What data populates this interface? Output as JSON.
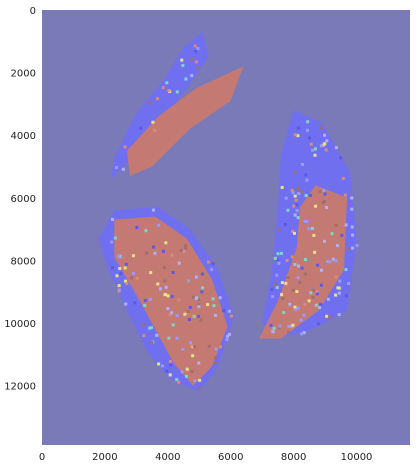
{
  "chart_data": {
    "type": "heatmap",
    "title": "",
    "xlabel": "",
    "ylabel": "",
    "xlim": [
      0,
      11700
    ],
    "ylim": [
      13900,
      0
    ],
    "y_inverted": true,
    "grid": false,
    "background_color": "#7a7ab8",
    "x_ticks": [
      {
        "value": 0,
        "label": "0"
      },
      {
        "value": 2000,
        "label": "2000"
      },
      {
        "value": 4000,
        "label": "4000"
      },
      {
        "value": 6000,
        "label": "6000"
      },
      {
        "value": 8000,
        "label": "8000"
      },
      {
        "value": 10000,
        "label": "10000"
      }
    ],
    "y_ticks": [
      {
        "value": 0,
        "label": "0"
      },
      {
        "value": 2000,
        "label": "2000"
      },
      {
        "value": 4000,
        "label": "4000"
      },
      {
        "value": 6000,
        "label": "6000"
      },
      {
        "value": 8000,
        "label": "8000"
      },
      {
        "value": 10000,
        "label": "10000"
      },
      {
        "value": 12000,
        "label": "12000"
      }
    ],
    "regions": [
      {
        "kind": "tissue-blue",
        "color": "#6f6ff0",
        "polygon": [
          [
            5100,
            700
          ],
          [
            5300,
            1500
          ],
          [
            4600,
            2500
          ],
          [
            3600,
            3800
          ],
          [
            2700,
            4900
          ],
          [
            2200,
            5400
          ],
          [
            2300,
            4700
          ],
          [
            3000,
            3300
          ],
          [
            3900,
            2200
          ],
          [
            4500,
            1200
          ]
        ]
      },
      {
        "kind": "tissue-red",
        "color": "#c47a72",
        "polygon": [
          [
            6400,
            1800
          ],
          [
            6000,
            2900
          ],
          [
            4700,
            3800
          ],
          [
            3500,
            5000
          ],
          [
            2800,
            5300
          ],
          [
            2700,
            4500
          ],
          [
            3700,
            3400
          ],
          [
            4900,
            2500
          ]
        ]
      },
      {
        "kind": "tissue-blue",
        "color": "#6f6ff0",
        "polygon": [
          [
            2300,
            6400
          ],
          [
            3700,
            6300
          ],
          [
            4700,
            7000
          ],
          [
            5600,
            8300
          ],
          [
            6100,
            9800
          ],
          [
            5600,
            11400
          ],
          [
            5000,
            12200
          ],
          [
            4100,
            11800
          ],
          [
            3400,
            11000
          ],
          [
            2800,
            9800
          ],
          [
            2100,
            8300
          ],
          [
            1800,
            7300
          ]
        ]
      },
      {
        "kind": "tissue-red",
        "color": "#c47a72",
        "polygon": [
          [
            2300,
            6700
          ],
          [
            3600,
            6600
          ],
          [
            4600,
            7300
          ],
          [
            5400,
            8600
          ],
          [
            5900,
            10100
          ],
          [
            5400,
            11400
          ],
          [
            4800,
            12000
          ],
          [
            4200,
            11300
          ],
          [
            3600,
            10200
          ],
          [
            3000,
            9100
          ],
          [
            2300,
            7900
          ]
        ]
      },
      {
        "kind": "tissue-blue",
        "color": "#6f6ff0",
        "polygon": [
          [
            8000,
            3200
          ],
          [
            8900,
            3600
          ],
          [
            9800,
            5200
          ],
          [
            10000,
            7400
          ],
          [
            9700,
            9600
          ],
          [
            8600,
            10200
          ],
          [
            7500,
            10500
          ],
          [
            7000,
            10000
          ],
          [
            7300,
            8400
          ],
          [
            7500,
            6300
          ],
          [
            7600,
            4600
          ]
        ]
      },
      {
        "kind": "tissue-red",
        "color": "#c47a72",
        "polygon": [
          [
            8700,
            5600
          ],
          [
            9700,
            6000
          ],
          [
            9600,
            8300
          ],
          [
            8800,
            9600
          ],
          [
            7600,
            10500
          ],
          [
            6900,
            10500
          ],
          [
            7500,
            9300
          ],
          [
            8100,
            7600
          ],
          [
            8200,
            6300
          ]
        ]
      }
    ]
  }
}
